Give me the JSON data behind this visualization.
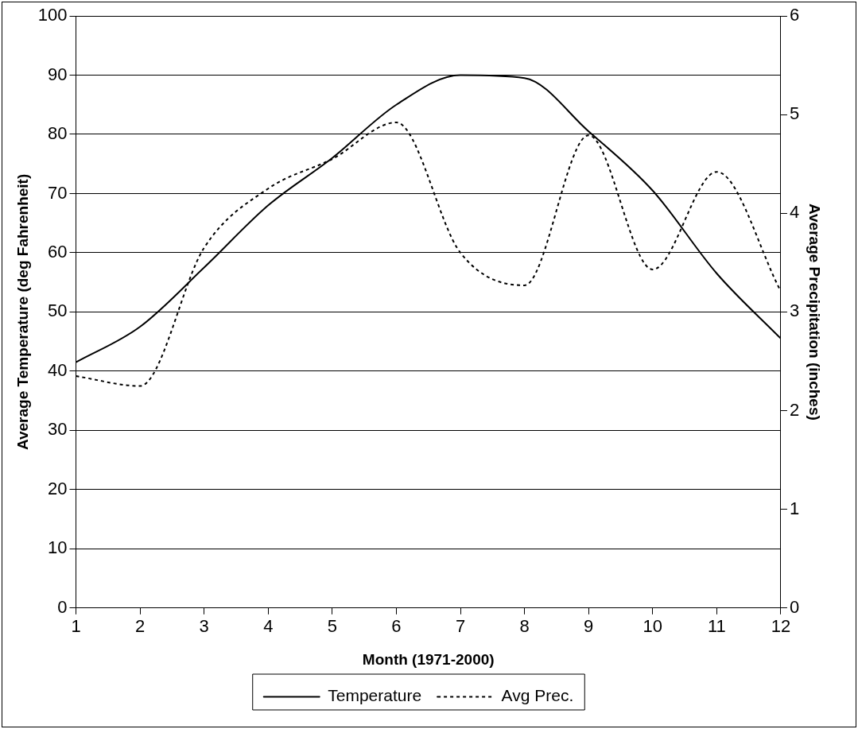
{
  "chart_data": {
    "type": "line",
    "xlabel": "Month (1971-2000)",
    "ylabel": "Average Temperature (deg Fahrenheit)",
    "y2label": "Average Precipitation (inches)",
    "x": [
      1,
      2,
      3,
      4,
      5,
      6,
      7,
      8,
      9,
      10,
      11,
      12
    ],
    "xlim": [
      1,
      12
    ],
    "xticks": [
      1,
      2,
      3,
      4,
      5,
      6,
      7,
      8,
      9,
      10,
      11,
      12
    ],
    "ylim": [
      0,
      100
    ],
    "yticks": [
      0,
      10,
      20,
      30,
      40,
      50,
      60,
      70,
      80,
      90,
      100
    ],
    "y2lim": [
      0,
      6
    ],
    "y2ticks": [
      0,
      1,
      2,
      3,
      4,
      5,
      6
    ],
    "grid": "y",
    "legend": "bottom",
    "marker": "none",
    "series": [
      {
        "name": "Temperature",
        "color": "#000000",
        "line_style": "solid",
        "values": [
          41.5,
          47.5,
          57.5,
          68,
          76,
          85,
          90,
          89.5,
          80.5,
          70.5,
          56.5,
          45.5
        ]
      },
      {
        "name": "Avg Prec.",
        "color": "#000000",
        "line_style": "dotted",
        "axis": "y2",
        "values": [
          2.35,
          2.25,
          3.65,
          4.25,
          4.55,
          4.92,
          3.6,
          3.27,
          4.79,
          3.43,
          4.42,
          3.21
        ]
      }
    ]
  }
}
